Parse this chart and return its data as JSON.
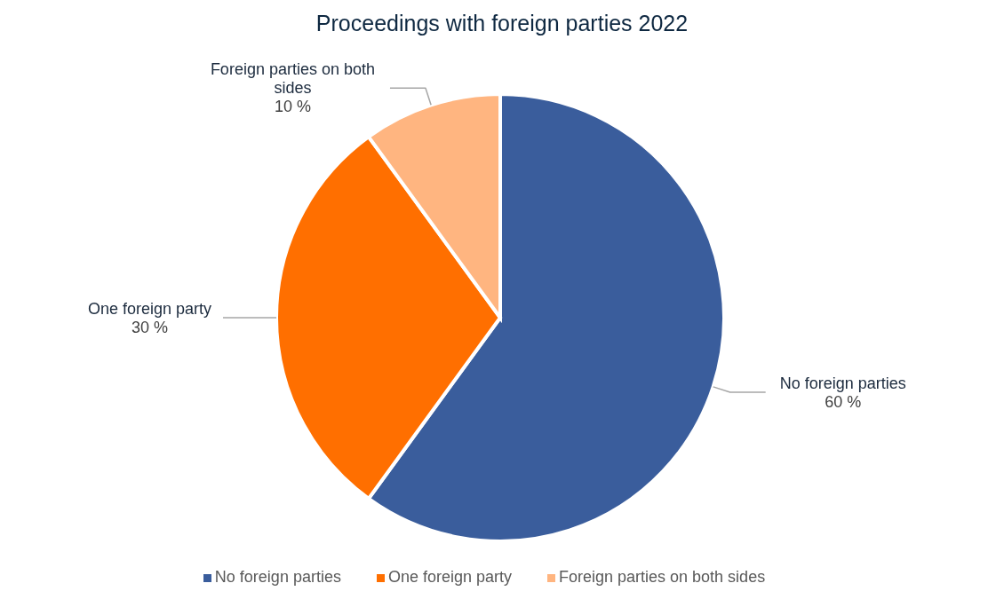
{
  "chart_data": {
    "type": "pie",
    "title": "Proceedings with foreign parties 2022",
    "categories": [
      "No foreign parties",
      "One foreign party",
      "Foreign parties on both sides"
    ],
    "values": [
      60,
      30,
      10
    ],
    "colors": [
      "#3a5d9c",
      "#ff6f00",
      "#ffb580"
    ],
    "value_labels": [
      "60 %",
      "30 %",
      "10 %"
    ],
    "legend": "bottom"
  }
}
